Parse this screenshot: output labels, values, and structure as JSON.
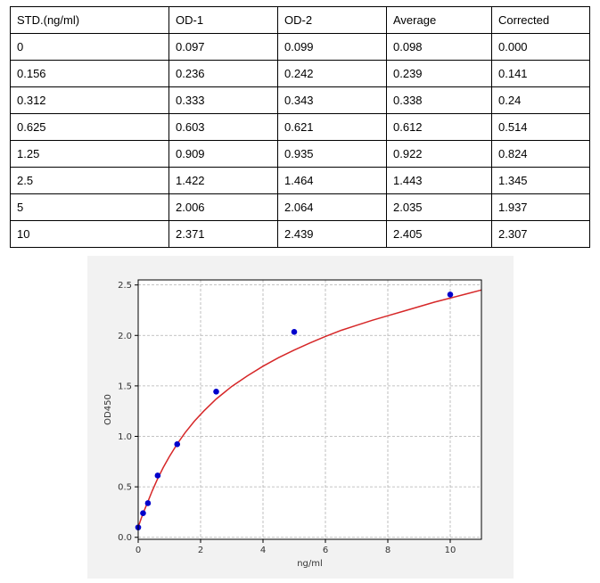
{
  "table": {
    "headers": [
      "STD.(ng/ml)",
      "OD-1",
      "OD-2",
      "Average",
      "Corrected"
    ],
    "rows": [
      [
        "0",
        "0.097",
        "0.099",
        "0.098",
        "0.000"
      ],
      [
        "0.156",
        "0.236",
        "0.242",
        "0.239",
        "0.141"
      ],
      [
        "0.312",
        "0.333",
        "0.343",
        "0.338",
        "0.24"
      ],
      [
        "0.625",
        "0.603",
        "0.621",
        "0.612",
        "0.514"
      ],
      [
        "1.25",
        "0.909",
        "0.935",
        "0.922",
        "0.824"
      ],
      [
        "2.5",
        "1.422",
        "1.464",
        "1.443",
        "1.345"
      ],
      [
        "5",
        "2.006",
        "2.064",
        "2.035",
        "1.937"
      ],
      [
        "10",
        "2.371",
        "2.439",
        "2.405",
        "2.307"
      ]
    ]
  },
  "chart_data": {
    "type": "scatter",
    "title": "",
    "xlabel": "ng/ml",
    "ylabel": "OD450",
    "xlim": [
      0,
      11
    ],
    "ylim": [
      -0.02,
      2.55
    ],
    "xticks": [
      0,
      2,
      4,
      6,
      8,
      10
    ],
    "yticks": [
      0.0,
      0.5,
      1.0,
      1.5,
      2.0,
      2.5
    ],
    "ytick_labels": [
      "0.0",
      "0.5",
      "1.0",
      "1.5",
      "2.0",
      "2.5"
    ],
    "grid": true,
    "series": [
      {
        "kind": "points",
        "x": [
          0,
          0.156,
          0.312,
          0.625,
          1.25,
          2.5,
          5,
          10
        ],
        "y": [
          0.098,
          0.239,
          0.338,
          0.612,
          0.922,
          1.443,
          2.035,
          2.405
        ],
        "color": "#0000cc"
      },
      {
        "kind": "fit-curve",
        "x": [
          0,
          0.1,
          0.2,
          0.3,
          0.45,
          0.6,
          0.8,
          1.0,
          1.25,
          1.5,
          1.8,
          2.1,
          2.5,
          3.0,
          3.5,
          4.0,
          4.5,
          5.0,
          5.5,
          6.0,
          6.5,
          7.0,
          7.5,
          8.0,
          8.5,
          9.0,
          9.5,
          10.0,
          10.5,
          11.0
        ],
        "y": [
          0.1,
          0.19,
          0.27,
          0.345,
          0.46,
          0.565,
          0.69,
          0.8,
          0.925,
          1.035,
          1.15,
          1.25,
          1.37,
          1.495,
          1.6,
          1.695,
          1.78,
          1.855,
          1.925,
          1.99,
          2.05,
          2.1,
          2.15,
          2.195,
          2.24,
          2.285,
          2.33,
          2.37,
          2.41,
          2.45
        ],
        "color": "#d62728"
      }
    ]
  }
}
